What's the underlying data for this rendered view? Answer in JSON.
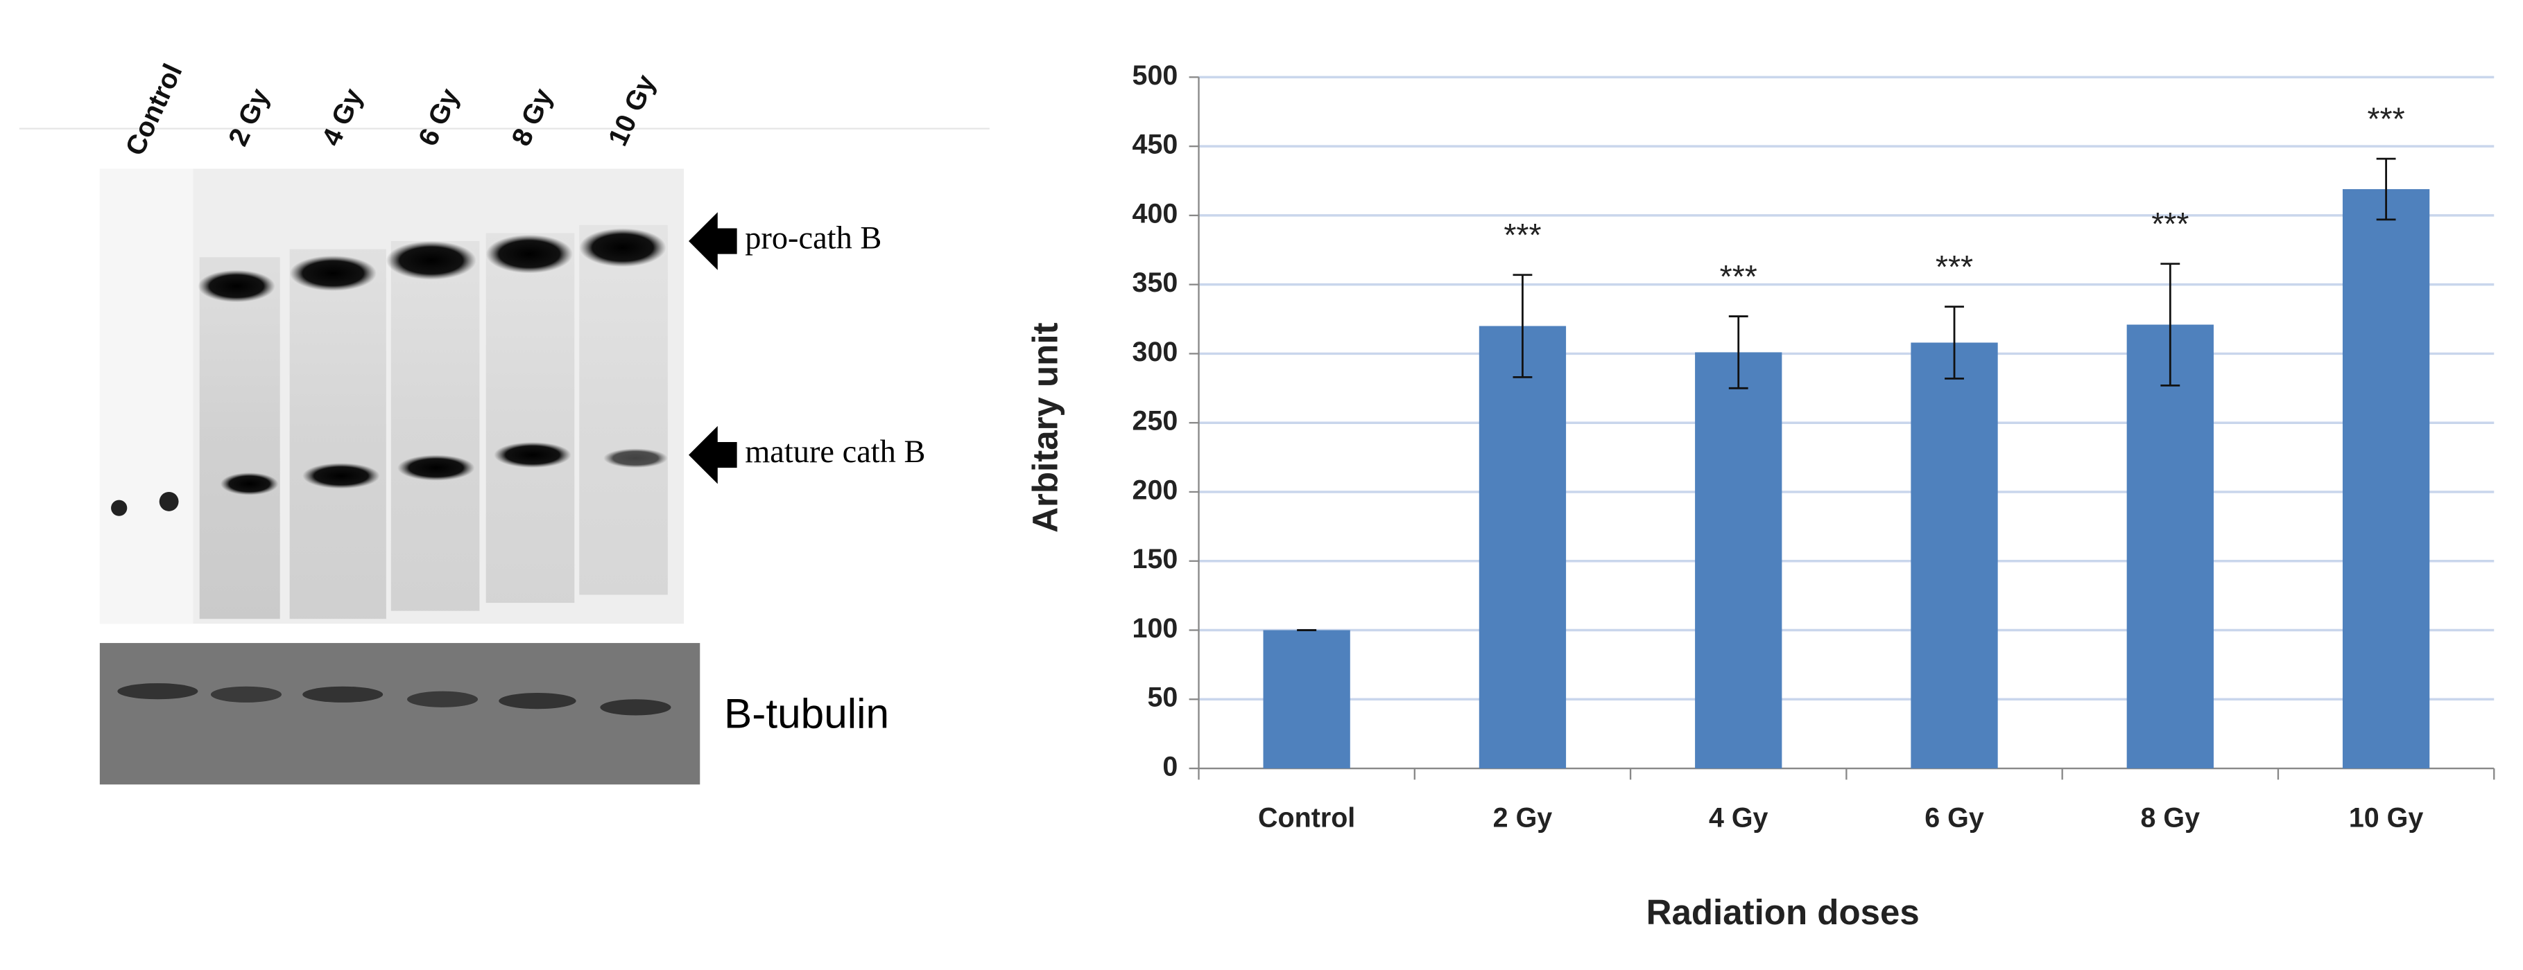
{
  "blot": {
    "lanes": [
      "Control",
      "2 Gy",
      "4 Gy",
      "6 Gy",
      "8 Gy",
      "10 Gy"
    ],
    "bands": [
      "pro-cath B",
      "mature cath B"
    ],
    "loading_control": "B-tubulin"
  },
  "chart_data": {
    "type": "bar",
    "y_label": "Arbitary unit",
    "x_label": "Radiation doses",
    "categories": [
      "Control",
      "2 Gy",
      "4 Gy",
      "6 Gy",
      "8 Gy",
      "10 Gy"
    ],
    "values": [
      100,
      320,
      301,
      308,
      321,
      419
    ],
    "errors": [
      0,
      37,
      26,
      26,
      44,
      22
    ],
    "annotations": [
      null,
      "***",
      "***",
      "***",
      "***",
      "***"
    ],
    "color": "#4f81bd",
    "ylim": [
      0,
      500
    ],
    "yticks": [
      0,
      50,
      100,
      150,
      200,
      250,
      300,
      350,
      400,
      450,
      500
    ],
    "grid": true
  }
}
